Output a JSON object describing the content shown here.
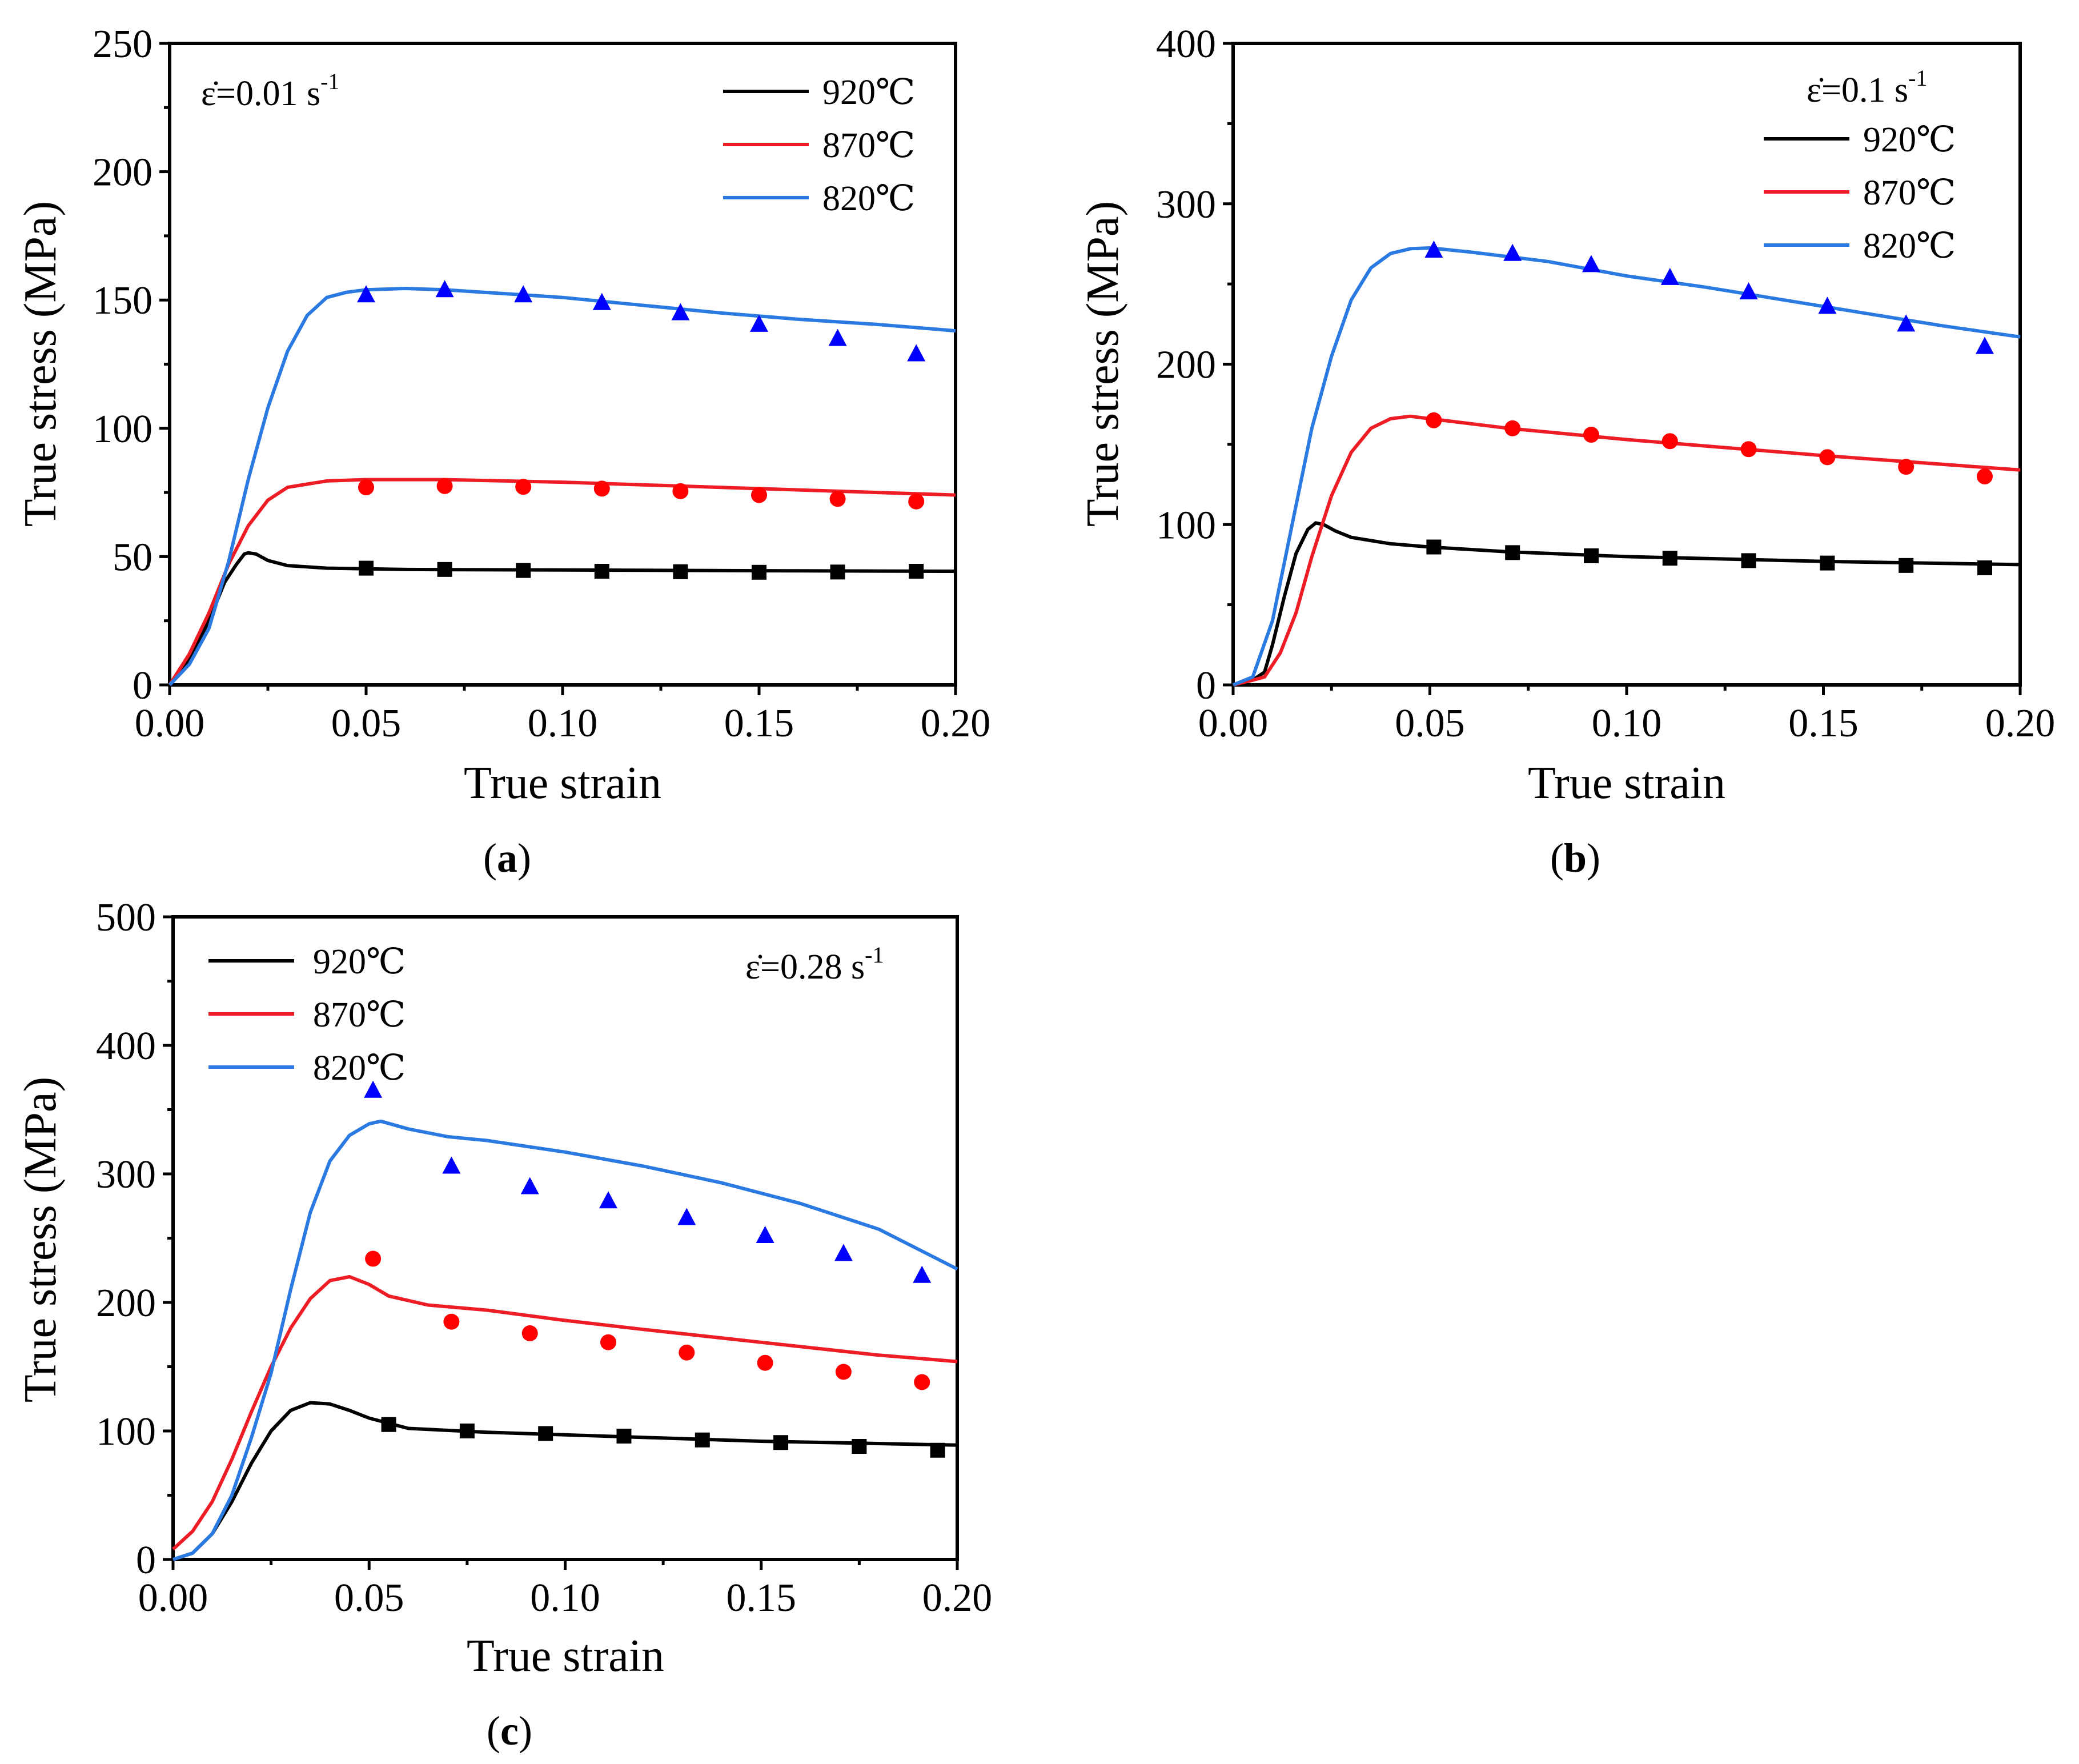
{
  "colors": {
    "920": "#000000",
    "870": "#ee1c24",
    "820": "#2a7ae2",
    "marker_920": "#000000",
    "marker_870": "#ff0000",
    "marker_820": "#0000ff"
  },
  "chart_data": [
    {
      "id": "a",
      "type": "line",
      "caption_letter": "a",
      "xlabel": "True strain",
      "ylabel": "True stress (MPa)",
      "xlim": [
        0,
        0.2
      ],
      "ylim": [
        0,
        250
      ],
      "xticks": [
        "0.00",
        "0.05",
        "0.10",
        "0.15",
        "0.20"
      ],
      "yticks": [
        "0",
        "50",
        "100",
        "150",
        "200",
        "250"
      ],
      "rate_label": {
        "prefix": "ε̇=0.01 s",
        "sup": "-1"
      },
      "legend_position": "top-right",
      "series": [
        {
          "name": "920℃",
          "color_key": "920",
          "marker": "square",
          "line": [
            [
              0,
              0
            ],
            [
              0.005,
              10
            ],
            [
              0.01,
              25
            ],
            [
              0.014,
              40
            ],
            [
              0.017,
              47
            ],
            [
              0.019,
              51
            ],
            [
              0.02,
              51.5
            ],
            [
              0.022,
              51
            ],
            [
              0.025,
              48.5
            ],
            [
              0.03,
              46.5
            ],
            [
              0.04,
              45.5
            ],
            [
              0.06,
              45
            ],
            [
              0.1,
              44.8
            ],
            [
              0.15,
              44.5
            ],
            [
              0.2,
              44.3
            ]
          ],
          "points": [
            [
              0.05,
              45.5
            ],
            [
              0.07,
              45
            ],
            [
              0.09,
              44.6
            ],
            [
              0.11,
              44.3
            ],
            [
              0.13,
              44.1
            ],
            [
              0.15,
              43.9
            ],
            [
              0.17,
              44
            ],
            [
              0.19,
              44.3
            ]
          ]
        },
        {
          "name": "870℃",
          "color_key": "870",
          "marker": "circle",
          "line": [
            [
              0,
              0
            ],
            [
              0.005,
              12
            ],
            [
              0.01,
              28
            ],
            [
              0.015,
              47
            ],
            [
              0.02,
              62
            ],
            [
              0.025,
              72
            ],
            [
              0.03,
              77
            ],
            [
              0.04,
              79.5
            ],
            [
              0.05,
              80
            ],
            [
              0.07,
              80
            ],
            [
              0.1,
              79
            ],
            [
              0.15,
              76.5
            ],
            [
              0.2,
              74
            ]
          ],
          "points": [
            [
              0.05,
              77
            ],
            [
              0.07,
              77.5
            ],
            [
              0.09,
              77.2
            ],
            [
              0.11,
              76.5
            ],
            [
              0.13,
              75.5
            ],
            [
              0.15,
              74
            ],
            [
              0.17,
              72.5
            ],
            [
              0.19,
              71.5
            ]
          ]
        },
        {
          "name": "820℃",
          "color_key": "820",
          "marker": "triangle",
          "line": [
            [
              0,
              0
            ],
            [
              0.005,
              8
            ],
            [
              0.01,
              22
            ],
            [
              0.015,
              48
            ],
            [
              0.02,
              80
            ],
            [
              0.025,
              108
            ],
            [
              0.03,
              130
            ],
            [
              0.035,
              144
            ],
            [
              0.04,
              151
            ],
            [
              0.045,
              153
            ],
            [
              0.05,
              154
            ],
            [
              0.06,
              154.5
            ],
            [
              0.07,
              154
            ],
            [
              0.08,
              153
            ],
            [
              0.1,
              151
            ],
            [
              0.12,
              148
            ],
            [
              0.14,
              145
            ],
            [
              0.16,
              142.5
            ],
            [
              0.18,
              140.5
            ],
            [
              0.2,
              138
            ]
          ],
          "points": [
            [
              0.05,
              152
            ],
            [
              0.07,
              154
            ],
            [
              0.09,
              152
            ],
            [
              0.11,
              149
            ],
            [
              0.13,
              145
            ],
            [
              0.15,
              140.5
            ],
            [
              0.17,
              135
            ],
            [
              0.19,
              129
            ]
          ]
        }
      ]
    },
    {
      "id": "b",
      "type": "line",
      "caption_letter": "b",
      "xlabel": "True strain",
      "ylabel": "True stress (MPa)",
      "xlim": [
        0,
        0.2
      ],
      "ylim": [
        0,
        400
      ],
      "xticks": [
        "0.00",
        "0.05",
        "0.10",
        "0.15",
        "0.20"
      ],
      "yticks": [
        "0",
        "100",
        "200",
        "300",
        "400"
      ],
      "rate_label": {
        "prefix": "ε̇=0.1 s",
        "sup": "-1"
      },
      "legend_position": "top-right",
      "series": [
        {
          "name": "920℃",
          "color_key": "920",
          "marker": "square",
          "line": [
            [
              0,
              0
            ],
            [
              0.005,
              3
            ],
            [
              0.008,
              8
            ],
            [
              0.01,
              25
            ],
            [
              0.013,
              55
            ],
            [
              0.016,
              82
            ],
            [
              0.019,
              97
            ],
            [
              0.021,
              101
            ],
            [
              0.023,
              100
            ],
            [
              0.026,
              96
            ],
            [
              0.03,
              92
            ],
            [
              0.04,
              88
            ],
            [
              0.05,
              86
            ],
            [
              0.07,
              83
            ],
            [
              0.1,
              80
            ],
            [
              0.15,
              77
            ],
            [
              0.2,
              75
            ]
          ],
          "points": [
            [
              0.051,
              86
            ],
            [
              0.071,
              82.5
            ],
            [
              0.091,
              80.5
            ],
            [
              0.111,
              79
            ],
            [
              0.131,
              77.5
            ],
            [
              0.151,
              76
            ],
            [
              0.171,
              74.5
            ],
            [
              0.191,
              73
            ]
          ]
        },
        {
          "name": "870℃",
          "color_key": "870",
          "marker": "circle",
          "line": [
            [
              0,
              0
            ],
            [
              0.005,
              3
            ],
            [
              0.008,
              5
            ],
            [
              0.012,
              20
            ],
            [
              0.016,
              45
            ],
            [
              0.02,
              80
            ],
            [
              0.025,
              118
            ],
            [
              0.03,
              145
            ],
            [
              0.035,
              160
            ],
            [
              0.04,
              166
            ],
            [
              0.045,
              167.5
            ],
            [
              0.05,
              166
            ],
            [
              0.07,
              160
            ],
            [
              0.1,
              153
            ],
            [
              0.15,
              143
            ],
            [
              0.2,
              134
            ]
          ],
          "points": [
            [
              0.051,
              165
            ],
            [
              0.071,
              160
            ],
            [
              0.091,
              156
            ],
            [
              0.111,
              152
            ],
            [
              0.131,
              147
            ],
            [
              0.151,
              142
            ],
            [
              0.171,
              136
            ],
            [
              0.191,
              130
            ]
          ]
        },
        {
          "name": "820℃",
          "color_key": "820",
          "marker": "triangle",
          "line": [
            [
              0,
              0
            ],
            [
              0.005,
              5
            ],
            [
              0.01,
              40
            ],
            [
              0.015,
              100
            ],
            [
              0.02,
              160
            ],
            [
              0.025,
              205
            ],
            [
              0.03,
              240
            ],
            [
              0.035,
              260
            ],
            [
              0.04,
              269
            ],
            [
              0.045,
              272
            ],
            [
              0.05,
              272.5
            ],
            [
              0.06,
              270
            ],
            [
              0.08,
              264
            ],
            [
              0.1,
              255
            ],
            [
              0.12,
              248
            ],
            [
              0.14,
              240
            ],
            [
              0.16,
              232
            ],
            [
              0.18,
              224
            ],
            [
              0.2,
              217
            ]
          ],
          "points": [
            [
              0.051,
              271
            ],
            [
              0.071,
              269
            ],
            [
              0.091,
              262
            ],
            [
              0.111,
              254
            ],
            [
              0.131,
              245
            ],
            [
              0.151,
              236
            ],
            [
              0.171,
              225
            ],
            [
              0.191,
              211
            ]
          ]
        }
      ]
    },
    {
      "id": "c",
      "type": "line",
      "caption_letter": "c",
      "xlabel": "True strain",
      "ylabel": "True stress (MPa)",
      "xlim": [
        0,
        0.2
      ],
      "ylim": [
        0,
        500
      ],
      "xticks": [
        "0.00",
        "0.05",
        "0.10",
        "0.15",
        "0.20"
      ],
      "yticks": [
        "0",
        "100",
        "200",
        "300",
        "400",
        "500"
      ],
      "rate_label": {
        "prefix": "ε̇=0.28 s",
        "sup": "-1"
      },
      "legend_position": "top-left",
      "series": [
        {
          "name": "920℃",
          "color_key": "920",
          "marker": "square",
          "line": [
            [
              0,
              0
            ],
            [
              0.005,
              5
            ],
            [
              0.01,
              20
            ],
            [
              0.015,
              45
            ],
            [
              0.02,
              75
            ],
            [
              0.025,
              100
            ],
            [
              0.03,
              116
            ],
            [
              0.035,
              122
            ],
            [
              0.04,
              121
            ],
            [
              0.045,
              116
            ],
            [
              0.05,
              110
            ],
            [
              0.06,
              102
            ],
            [
              0.08,
              99
            ],
            [
              0.1,
              97
            ],
            [
              0.15,
              92
            ],
            [
              0.2,
              89
            ]
          ],
          "points": [
            [
              0.055,
              105
            ],
            [
              0.075,
              100
            ],
            [
              0.095,
              98
            ],
            [
              0.115,
              96
            ],
            [
              0.135,
              93
            ],
            [
              0.155,
              91
            ],
            [
              0.175,
              88
            ],
            [
              0.195,
              85
            ]
          ]
        },
        {
          "name": "870℃",
          "color_key": "870",
          "marker": "circle",
          "line": [
            [
              0,
              8
            ],
            [
              0.005,
              22
            ],
            [
              0.01,
              45
            ],
            [
              0.015,
              78
            ],
            [
              0.02,
              115
            ],
            [
              0.025,
              150
            ],
            [
              0.03,
              180
            ],
            [
              0.035,
              203
            ],
            [
              0.04,
              217
            ],
            [
              0.045,
              220
            ],
            [
              0.05,
              214
            ],
            [
              0.055,
              205
            ],
            [
              0.065,
              198
            ],
            [
              0.08,
              194
            ],
            [
              0.1,
              186
            ],
            [
              0.12,
              179
            ],
            [
              0.15,
              169
            ],
            [
              0.18,
              159
            ],
            [
              0.2,
              154
            ]
          ],
          "points": [
            [
              0.051,
              234
            ],
            [
              0.071,
              185
            ],
            [
              0.091,
              176
            ],
            [
              0.111,
              169
            ],
            [
              0.131,
              161
            ],
            [
              0.151,
              153
            ],
            [
              0.171,
              146
            ],
            [
              0.191,
              138
            ]
          ]
        },
        {
          "name": "820℃",
          "color_key": "820",
          "marker": "triangle",
          "line": [
            [
              0,
              0
            ],
            [
              0.005,
              5
            ],
            [
              0.01,
              20
            ],
            [
              0.015,
              50
            ],
            [
              0.02,
              95
            ],
            [
              0.025,
              145
            ],
            [
              0.03,
              210
            ],
            [
              0.035,
              270
            ],
            [
              0.04,
              310
            ],
            [
              0.045,
              330
            ],
            [
              0.05,
              339
            ],
            [
              0.053,
              341
            ],
            [
              0.06,
              335
            ],
            [
              0.07,
              329
            ],
            [
              0.08,
              326
            ],
            [
              0.1,
              317
            ],
            [
              0.12,
              306
            ],
            [
              0.14,
              293
            ],
            [
              0.16,
              277
            ],
            [
              0.18,
              257
            ],
            [
              0.2,
              226
            ]
          ],
          "points": [
            [
              0.051,
              365
            ],
            [
              0.071,
              306
            ],
            [
              0.091,
              290
            ],
            [
              0.111,
              279
            ],
            [
              0.131,
              266
            ],
            [
              0.151,
              252
            ],
            [
              0.171,
              238
            ],
            [
              0.191,
              221
            ]
          ]
        }
      ]
    }
  ]
}
